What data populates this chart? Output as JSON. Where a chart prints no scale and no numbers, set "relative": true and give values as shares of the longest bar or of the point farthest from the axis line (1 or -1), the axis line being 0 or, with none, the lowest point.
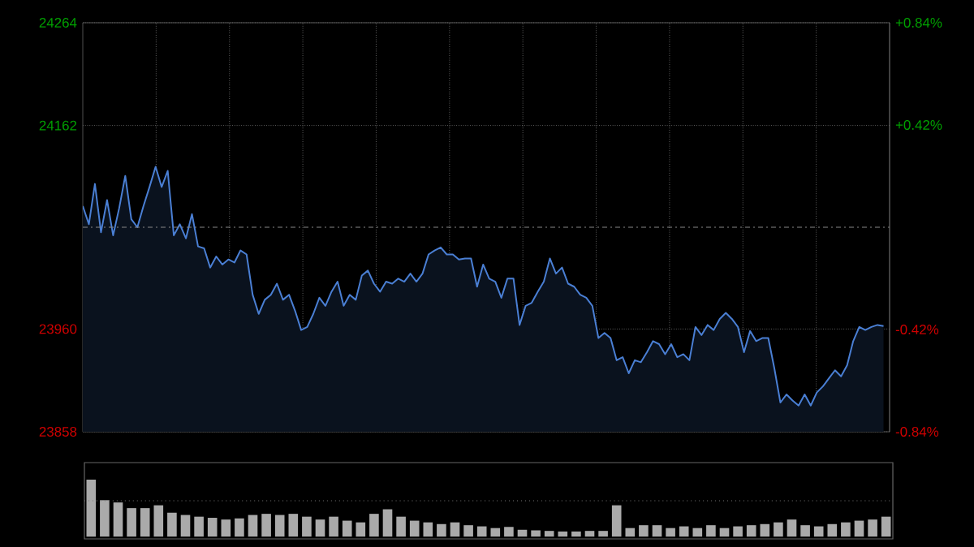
{
  "chart_data": [
    {
      "type": "area",
      "categories": [
        null,
        null,
        null,
        null,
        null,
        null,
        null,
        null,
        null,
        null,
        null,
        null,
        null,
        null,
        null,
        null,
        null,
        null,
        null,
        null,
        null,
        null,
        null,
        null,
        null,
        null,
        null,
        null,
        null,
        null,
        null,
        null,
        null,
        null,
        null,
        null,
        null,
        null,
        null,
        null,
        null,
        null,
        null,
        null,
        null,
        null,
        null,
        null,
        null,
        null,
        null,
        null,
        null,
        null,
        null,
        null,
        null,
        null,
        null,
        null,
        null,
        null,
        null,
        null,
        null,
        null,
        null,
        null,
        null,
        null,
        null,
        null,
        null,
        null,
        null,
        null,
        null,
        null,
        null,
        null,
        null,
        null,
        null,
        null,
        null,
        null,
        null,
        null,
        null,
        null,
        null,
        null,
        null,
        null,
        null,
        null,
        null,
        null,
        null,
        null,
        null,
        null,
        null,
        null,
        null,
        null,
        null,
        null,
        null,
        null,
        null,
        null,
        null,
        null,
        null,
        null,
        null,
        null,
        null,
        null,
        null,
        null,
        null,
        null,
        null,
        null,
        null,
        null,
        null,
        null,
        null,
        null,
        null,
        null
      ],
      "series": [
        {
          "color": "#4a7fd4",
          "values": [
            24082,
            24064,
            24104,
            24056,
            24088,
            24053,
            24080,
            24112,
            24069,
            24061,
            24082,
            24101,
            24121,
            24101,
            24117,
            24053,
            24064,
            24050,
            24074,
            24042,
            24040,
            24021,
            24032,
            24024,
            24029,
            24026,
            24038,
            24034,
            23994,
            23975,
            23989,
            23994,
            24005,
            23989,
            23994,
            23978,
            23959,
            23962,
            23975,
            23991,
            23983,
            23997,
            24007,
            23983,
            23994,
            23989,
            24013,
            24018,
            24005,
            23997,
            24007,
            24005,
            24010,
            24007,
            24015,
            24007,
            24015,
            24034,
            24038,
            24041,
            24034,
            24034,
            24029,
            24030,
            24030,
            24002,
            24024,
            24010,
            24007,
            23991,
            24010,
            24010,
            23964,
            23983,
            23986,
            23997,
            24007,
            24030,
            24015,
            24021,
            24005,
            24002,
            23994,
            23991,
            23983,
            23951,
            23956,
            23951,
            23929,
            23932,
            23916,
            23929,
            23927,
            23937,
            23948,
            23945,
            23935,
            23945,
            23932,
            23935,
            23929,
            23962,
            23954,
            23964,
            23959,
            23970,
            23976,
            23970,
            23962,
            23937,
            23958,
            23948,
            23951,
            23951,
            23921,
            23887,
            23895,
            23889,
            23884,
            23895,
            23884,
            23897,
            23903,
            23911,
            23919,
            23913,
            23924,
            23948,
            23962,
            23959,
            23962,
            23964,
            23963,
            null
          ]
        }
      ],
      "ylim": [
        23858,
        24264
      ],
      "yticks": [
        23858,
        23960,
        24162,
        24264
      ],
      "y2lim": [
        -0.84,
        0.84
      ],
      "y2ticks": [
        {
          "value": -0.84,
          "label": "-0.84%"
        },
        {
          "value": -0.42,
          "label": "-0.42%"
        },
        {
          "value": 0.42,
          "label": "+0.42%"
        },
        {
          "value": 0.84,
          "label": "+0.84%"
        }
      ],
      "ref_lines": [
        {
          "axis": "y",
          "value": 24061,
          "color": "#888888",
          "line_style": "dashed"
        }
      ],
      "grid": true
    },
    {
      "type": "bar",
      "relative": true,
      "categories": [
        null,
        null,
        null,
        null,
        null,
        null,
        null,
        null,
        null,
        null,
        null,
        null,
        null,
        null,
        null,
        null,
        null,
        null,
        null,
        null,
        null,
        null,
        null,
        null,
        null,
        null,
        null,
        null,
        null,
        null,
        null,
        null,
        null,
        null,
        null,
        null,
        null,
        null,
        null,
        null,
        null,
        null,
        null,
        null,
        null,
        null,
        null,
        null,
        null,
        null,
        null,
        null,
        null,
        null,
        null,
        null,
        null,
        null,
        null,
        null
      ],
      "color": "#aaaaaa",
      "ref_lines": [
        {
          "axis": "y",
          "value": 0.63,
          "color": "#777777",
          "line_style": "dotted"
        }
      ],
      "values": [
        1.0,
        0.64,
        0.6,
        0.5,
        0.5,
        0.55,
        0.42,
        0.38,
        0.35,
        0.33,
        0.3,
        0.32,
        0.38,
        0.4,
        0.38,
        0.4,
        0.35,
        0.3,
        0.35,
        0.28,
        0.25,
        0.4,
        0.48,
        0.35,
        0.28,
        0.25,
        0.22,
        0.25,
        0.2,
        0.18,
        0.15,
        0.17,
        0.12,
        0.11,
        0.1,
        0.09,
        0.09,
        0.1,
        0.1,
        0.55,
        0.15,
        0.2,
        0.2,
        0.15,
        0.18,
        0.15,
        0.2,
        0.15,
        0.18,
        0.2,
        0.22,
        0.25,
        0.3,
        0.2,
        0.18,
        0.22,
        0.25,
        0.28,
        0.3,
        0.35
      ]
    }
  ]
}
